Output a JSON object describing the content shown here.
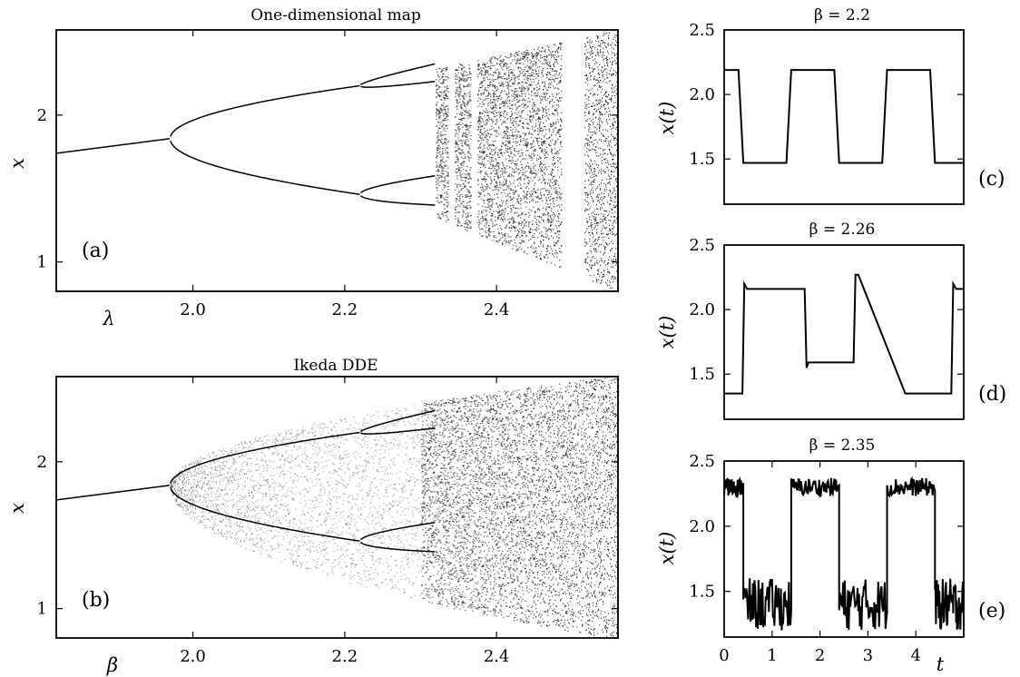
{
  "chart_data": [
    {
      "id": "a",
      "type": "scatter",
      "title": "One-dimensional map",
      "panel_label": "(a)",
      "xlabel": "λ",
      "ylabel": "x",
      "xlim": [
        1.82,
        2.56
      ],
      "ylim": [
        0.8,
        2.58
      ],
      "x_ticks": [
        2.0,
        2.2,
        2.4
      ],
      "x_tick_labels": [
        "2.0",
        "2.2",
        "2.4"
      ],
      "y_ticks": [
        1,
        2
      ],
      "y_tick_labels": [
        "1",
        "2"
      ],
      "grid": false,
      "description_points": {
        "stable_branch": {
          "x": [
            1.82,
            1.97
          ],
          "y": [
            1.74,
            1.84
          ]
        },
        "period_doubling_points": [
          1.97,
          2.22,
          2.29
        ],
        "chaos_onset": 2.32,
        "upper_branch_end": {
          "x": 2.56,
          "y": 2.58
        },
        "lower_branch_end": {
          "x": 2.56,
          "y": 0.8
        },
        "periodic_windows": [
          2.34,
          2.37,
          2.4,
          2.5
        ]
      }
    },
    {
      "id": "b",
      "type": "scatter",
      "title": "Ikeda DDE",
      "panel_label": "(b)",
      "xlabel": "β",
      "ylabel": "x",
      "xlim": [
        1.82,
        2.56
      ],
      "ylim": [
        0.8,
        2.58
      ],
      "x_ticks": [
        2.0,
        2.2,
        2.4
      ],
      "x_tick_labels": [
        "2.0",
        "2.2",
        "2.4"
      ],
      "y_ticks": [
        1,
        2
      ],
      "y_tick_labels": [
        "1",
        "2"
      ],
      "grid": false,
      "description_points": {
        "stable_branch": {
          "x": [
            1.82,
            1.97
          ],
          "y": [
            1.74,
            1.84
          ]
        },
        "period_doubling_points": [
          1.97,
          2.22,
          2.29
        ]
      }
    },
    {
      "id": "c",
      "type": "line",
      "title": "β = 2.2",
      "panel_label": "(c)",
      "ylabel": "x(t)",
      "xlim": [
        0,
        5
      ],
      "ylim": [
        1.15,
        2.5
      ],
      "y_ticks": [
        1.5,
        2.0,
        2.5
      ],
      "y_tick_labels": [
        "1.5",
        "2.0",
        "2.5"
      ],
      "x": [
        0,
        0.3,
        0.4,
        1.3,
        1.4,
        2.3,
        2.4,
        3.3,
        3.4,
        4.3,
        4.4,
        5.0
      ],
      "y": [
        2.19,
        2.19,
        1.47,
        1.47,
        2.19,
        2.19,
        1.47,
        1.47,
        2.19,
        2.19,
        1.47,
        1.47
      ]
    },
    {
      "id": "d",
      "type": "line",
      "title": "β = 2.26",
      "panel_label": "(d)",
      "ylabel": "x(t)",
      "xlim": [
        0,
        5
      ],
      "ylim": [
        1.15,
        2.5
      ],
      "y_ticks": [
        1.5,
        2.0,
        2.5
      ],
      "y_tick_labels": [
        "1.5",
        "2.0",
        "2.5"
      ],
      "x": [
        0,
        0.38,
        0.42,
        0.48,
        1.68,
        1.72,
        1.76,
        2.7,
        2.74,
        2.8,
        3.78,
        3.9,
        4.74,
        4.78,
        4.84,
        5.0
      ],
      "y": [
        1.35,
        1.35,
        2.2,
        2.16,
        2.16,
        1.55,
        1.59,
        1.59,
        2.27,
        2.27,
        1.35,
        1.35,
        1.35,
        2.2,
        2.16,
        2.16
      ]
    },
    {
      "id": "e",
      "type": "line",
      "title": "β = 2.35",
      "panel_label": "(e)",
      "xlabel": "t",
      "ylabel": "x(t)",
      "xlim": [
        0,
        5
      ],
      "ylim": [
        1.15,
        2.5
      ],
      "x_ticks": [
        0,
        1,
        2,
        3,
        4
      ],
      "x_tick_labels": [
        "0",
        "1",
        "2",
        "3",
        "4"
      ],
      "y_ticks": [
        1.5,
        2.0,
        2.5
      ],
      "y_tick_labels": [
        "1.5",
        "2.0",
        "2.5"
      ],
      "plateaus": [
        {
          "x": [
            0.0,
            0.4
          ],
          "y": 2.3
        },
        {
          "x": [
            0.4,
            1.4
          ],
          "y": 1.4
        },
        {
          "x": [
            1.4,
            2.4
          ],
          "y": 2.3
        },
        {
          "x": [
            2.4,
            3.4
          ],
          "y": 1.4
        },
        {
          "x": [
            3.4,
            4.4
          ],
          "y": 2.3
        },
        {
          "x": [
            4.4,
            5.0
          ],
          "y": 1.4
        }
      ]
    }
  ]
}
